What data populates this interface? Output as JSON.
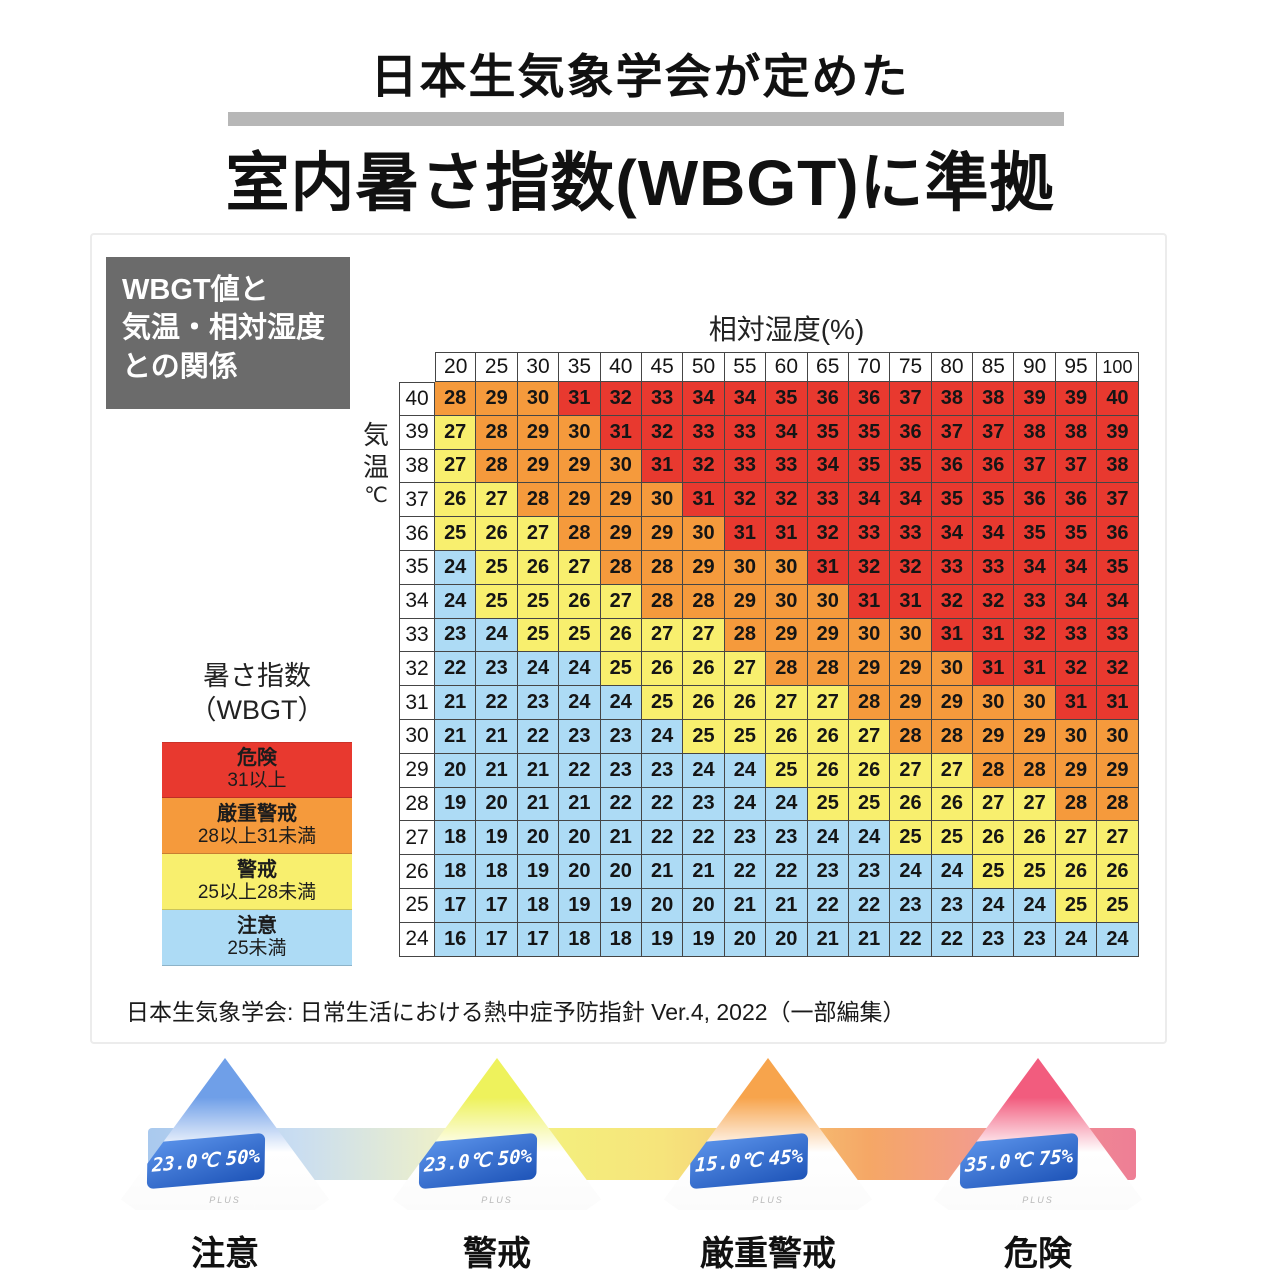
{
  "header": {
    "title_top": "日本生気象学会が定めた",
    "title_main": "室内暑さ指数(WBGT)に準拠",
    "bar_color": "#b7b7b7"
  },
  "panel": {
    "info_box": {
      "bg": "#6b6b6b",
      "lines": [
        "WBGT値と",
        "気温・相対湿度",
        "との関係"
      ]
    },
    "source": "日本生気象学会: 日常生活における熱中症予防指針 Ver.4, 2022（一部編集）"
  },
  "chart_data": {
    "type": "heatmap",
    "title": "WBGT値と気温・相対湿度との関係",
    "x_title": "相対湿度(%)",
    "y_title": "気温℃",
    "y_title_chars": [
      "気",
      "温",
      "℃"
    ],
    "humidity": [
      20,
      25,
      30,
      35,
      40,
      45,
      50,
      55,
      60,
      65,
      70,
      75,
      80,
      85,
      90,
      95,
      100
    ],
    "temps": [
      40,
      39,
      38,
      37,
      36,
      35,
      34,
      33,
      32,
      31,
      30,
      29,
      28,
      27,
      26,
      25,
      24
    ],
    "values": [
      [
        28,
        29,
        30,
        31,
        32,
        33,
        34,
        34,
        35,
        36,
        36,
        37,
        38,
        38,
        39,
        39,
        40
      ],
      [
        27,
        28,
        29,
        30,
        31,
        32,
        33,
        33,
        34,
        35,
        35,
        36,
        37,
        37,
        38,
        38,
        39
      ],
      [
        27,
        28,
        29,
        29,
        30,
        31,
        32,
        33,
        33,
        34,
        35,
        35,
        36,
        36,
        37,
        37,
        38
      ],
      [
        26,
        27,
        28,
        29,
        29,
        30,
        31,
        32,
        32,
        33,
        34,
        34,
        35,
        35,
        36,
        36,
        37
      ],
      [
        25,
        26,
        27,
        28,
        29,
        29,
        30,
        31,
        31,
        32,
        33,
        33,
        34,
        34,
        35,
        35,
        36
      ],
      [
        24,
        25,
        26,
        27,
        28,
        28,
        29,
        30,
        30,
        31,
        32,
        32,
        33,
        33,
        34,
        34,
        35
      ],
      [
        24,
        25,
        25,
        26,
        27,
        28,
        28,
        29,
        30,
        30,
        31,
        31,
        32,
        32,
        33,
        34,
        34
      ],
      [
        23,
        24,
        25,
        25,
        26,
        27,
        27,
        28,
        29,
        29,
        30,
        30,
        31,
        31,
        32,
        33,
        33
      ],
      [
        22,
        23,
        24,
        24,
        25,
        26,
        26,
        27,
        28,
        28,
        29,
        29,
        30,
        31,
        31,
        32,
        32
      ],
      [
        21,
        22,
        23,
        24,
        24,
        25,
        26,
        26,
        27,
        27,
        28,
        29,
        29,
        30,
        30,
        31,
        31
      ],
      [
        21,
        21,
        22,
        23,
        23,
        24,
        25,
        25,
        26,
        26,
        27,
        28,
        28,
        29,
        29,
        30,
        30
      ],
      [
        20,
        21,
        21,
        22,
        23,
        23,
        24,
        24,
        25,
        26,
        26,
        27,
        27,
        28,
        28,
        29,
        29
      ],
      [
        19,
        20,
        21,
        21,
        22,
        22,
        23,
        24,
        24,
        25,
        25,
        26,
        26,
        27,
        27,
        28,
        28
      ],
      [
        18,
        19,
        20,
        20,
        21,
        22,
        22,
        23,
        23,
        24,
        24,
        25,
        25,
        26,
        26,
        27,
        27
      ],
      [
        18,
        18,
        19,
        20,
        20,
        21,
        21,
        22,
        22,
        23,
        23,
        24,
        24,
        25,
        25,
        26,
        26
      ],
      [
        17,
        17,
        18,
        19,
        19,
        20,
        20,
        21,
        21,
        22,
        22,
        23,
        23,
        24,
        24,
        25,
        25
      ],
      [
        16,
        17,
        17,
        18,
        18,
        19,
        19,
        20,
        20,
        21,
        21,
        22,
        22,
        23,
        23,
        24,
        24
      ]
    ],
    "levels": [
      {
        "name": "危険",
        "range": "31以上",
        "min": 31,
        "color": "#e8392f"
      },
      {
        "name": "厳重警戒",
        "range": "28以上31未満",
        "min": 28,
        "color": "#f59a3c"
      },
      {
        "name": "警戒",
        "range": "25以上28未満",
        "min": 25,
        "color": "#f8ef6e"
      },
      {
        "name": "注意",
        "range": "25未満",
        "min": 0,
        "color": "#addbf5"
      }
    ],
    "legend_title": [
      "暑さ指数",
      "（WBGT）"
    ]
  },
  "devices": [
    {
      "label": "注意",
      "temp": "23.0℃",
      "humidity": "50%",
      "glow": "#6f9fe8",
      "brand": "PLUS"
    },
    {
      "label": "警戒",
      "temp": "23.0℃",
      "humidity": "50%",
      "glow": "#eef25c",
      "brand": "PLUS"
    },
    {
      "label": "厳重警戒",
      "temp": "15.0℃",
      "humidity": "45%",
      "glow": "#f7a44c",
      "brand": "PLUS"
    },
    {
      "label": "危険",
      "temp": "35.0℃",
      "humidity": "75%",
      "glow": "#f25c7e",
      "brand": "PLUS"
    }
  ]
}
